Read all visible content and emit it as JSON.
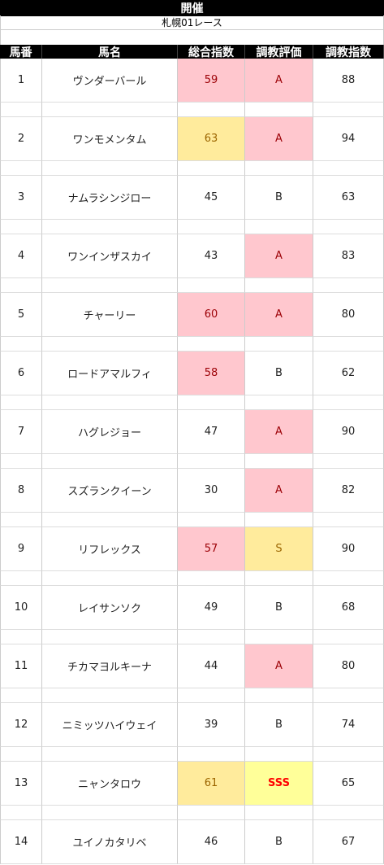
{
  "sheet": {
    "title": "開催",
    "subtitle": "札幌01レース"
  },
  "headers": [
    "馬番",
    "馬名",
    "総合指数",
    "調教評価",
    "調教指数"
  ],
  "rows": [
    {
      "no": "1",
      "name": "ヴンダーバール",
      "total": "59",
      "eval": "A",
      "train": "88",
      "total_style": "pink",
      "eval_style": "pink"
    },
    {
      "no": "2",
      "name": "ワンモメンタム",
      "total": "63",
      "eval": "A",
      "train": "94",
      "total_style": "yellow",
      "eval_style": "pink"
    },
    {
      "no": "3",
      "name": "ナムラシンジロー",
      "total": "45",
      "eval": "B",
      "train": "63",
      "total_style": "",
      "eval_style": ""
    },
    {
      "no": "4",
      "name": "ワンインザスカイ",
      "total": "43",
      "eval": "A",
      "train": "83",
      "total_style": "",
      "eval_style": "pink"
    },
    {
      "no": "5",
      "name": "チャーリー",
      "total": "60",
      "eval": "A",
      "train": "80",
      "total_style": "pink",
      "eval_style": "pink"
    },
    {
      "no": "6",
      "name": "ロードアマルフィ",
      "total": "58",
      "eval": "B",
      "train": "62",
      "total_style": "pink",
      "eval_style": ""
    },
    {
      "no": "7",
      "name": "ハグレジョー",
      "total": "47",
      "eval": "A",
      "train": "90",
      "total_style": "",
      "eval_style": "pink"
    },
    {
      "no": "8",
      "name": "スズランクイーン",
      "total": "30",
      "eval": "A",
      "train": "82",
      "total_style": "",
      "eval_style": "pink"
    },
    {
      "no": "9",
      "name": "リフレックス",
      "total": "57",
      "eval": "S",
      "train": "90",
      "total_style": "pink",
      "eval_style": "yellow"
    },
    {
      "no": "10",
      "name": "レイサンソク",
      "total": "49",
      "eval": "B",
      "train": "68",
      "total_style": "",
      "eval_style": ""
    },
    {
      "no": "11",
      "name": "チカマヨルキーナ",
      "total": "44",
      "eval": "A",
      "train": "80",
      "total_style": "",
      "eval_style": "pink"
    },
    {
      "no": "12",
      "name": "ニミッツハイウェイ",
      "total": "39",
      "eval": "B",
      "train": "74",
      "total_style": "",
      "eval_style": ""
    },
    {
      "no": "13",
      "name": "ニャンタロウ",
      "total": "61",
      "eval": "SSS",
      "train": "65",
      "total_style": "yellow",
      "eval_style": "sss"
    },
    {
      "no": "14",
      "name": "ユイノカタリベ",
      "total": "46",
      "eval": "B",
      "train": "67",
      "total_style": "",
      "eval_style": ""
    }
  ],
  "colors": {
    "pink_fill": "#ffc7ce",
    "pink_text": "#9c0006",
    "yellow_fill": "#ffeb9c",
    "yellow_text": "#9c6500",
    "sss_fill": "#ffff99",
    "sss_text": "#ff0000"
  }
}
